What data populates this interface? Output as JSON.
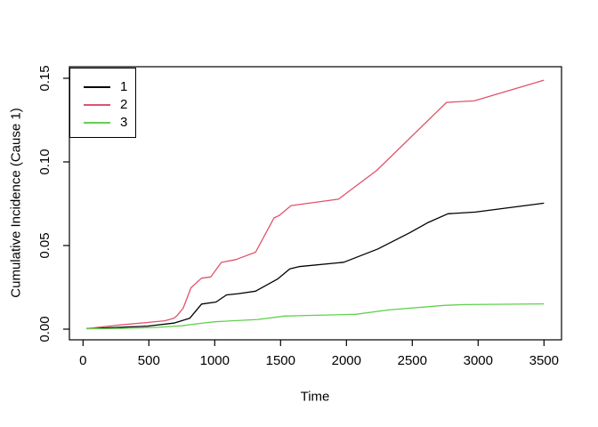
{
  "chart_data": {
    "type": "line",
    "title": "",
    "xlabel": "Time",
    "ylabel": "Cumulative Incidence (Cause 1)",
    "xlim": [
      -100,
      3630
    ],
    "ylim": [
      -0.006,
      0.156
    ],
    "grid": false,
    "x_ticks": [
      0,
      500,
      1000,
      1500,
      2000,
      2500,
      3000,
      3500
    ],
    "y_ticks": [
      "0.00",
      "0.05",
      "0.10",
      "0.15"
    ],
    "legend": {
      "position": "top-left",
      "entries": [
        {
          "label": "1",
          "color": "#000000"
        },
        {
          "label": "2",
          "color": "#DF536B"
        },
        {
          "label": "3",
          "color": "#61D04F"
        }
      ]
    },
    "series": [
      {
        "name": "1",
        "color": "#000000",
        "points": [
          [
            25,
            0.0003
          ],
          [
            250,
            0.001
          ],
          [
            490,
            0.0018
          ],
          [
            690,
            0.0036
          ],
          [
            810,
            0.0065
          ],
          [
            900,
            0.015
          ],
          [
            1010,
            0.0162
          ],
          [
            1090,
            0.0205
          ],
          [
            1180,
            0.0212
          ],
          [
            1310,
            0.0227
          ],
          [
            1480,
            0.0301
          ],
          [
            1570,
            0.036
          ],
          [
            1640,
            0.0374
          ],
          [
            1980,
            0.04
          ],
          [
            2240,
            0.048
          ],
          [
            2480,
            0.0576
          ],
          [
            2620,
            0.0638
          ],
          [
            2770,
            0.069
          ],
          [
            2980,
            0.07
          ],
          [
            3500,
            0.0753
          ]
        ]
      },
      {
        "name": "2",
        "color": "#DF536B",
        "points": [
          [
            25,
            0.0003
          ],
          [
            280,
            0.0025
          ],
          [
            490,
            0.004
          ],
          [
            620,
            0.005
          ],
          [
            690,
            0.0065
          ],
          [
            715,
            0.0082
          ],
          [
            760,
            0.0125
          ],
          [
            820,
            0.0248
          ],
          [
            900,
            0.0305
          ],
          [
            970,
            0.0312
          ],
          [
            1050,
            0.0399
          ],
          [
            1160,
            0.0416
          ],
          [
            1310,
            0.046
          ],
          [
            1450,
            0.0665
          ],
          [
            1490,
            0.068
          ],
          [
            1580,
            0.0739
          ],
          [
            1940,
            0.0777
          ],
          [
            2020,
            0.0825
          ],
          [
            2230,
            0.0949
          ],
          [
            2760,
            0.1356
          ],
          [
            2970,
            0.1365
          ],
          [
            3500,
            0.1489
          ]
        ]
      },
      {
        "name": "3",
        "color": "#61D04F",
        "points": [
          [
            25,
            0.0002
          ],
          [
            300,
            0.0005
          ],
          [
            550,
            0.001
          ],
          [
            750,
            0.002
          ],
          [
            900,
            0.0035
          ],
          [
            1000,
            0.0044
          ],
          [
            1330,
            0.0058
          ],
          [
            1530,
            0.0078
          ],
          [
            1700,
            0.0082
          ],
          [
            2070,
            0.0089
          ],
          [
            2320,
            0.0115
          ],
          [
            2740,
            0.0142
          ],
          [
            2900,
            0.0147
          ],
          [
            3200,
            0.0149
          ],
          [
            3500,
            0.0151
          ]
        ]
      }
    ]
  }
}
